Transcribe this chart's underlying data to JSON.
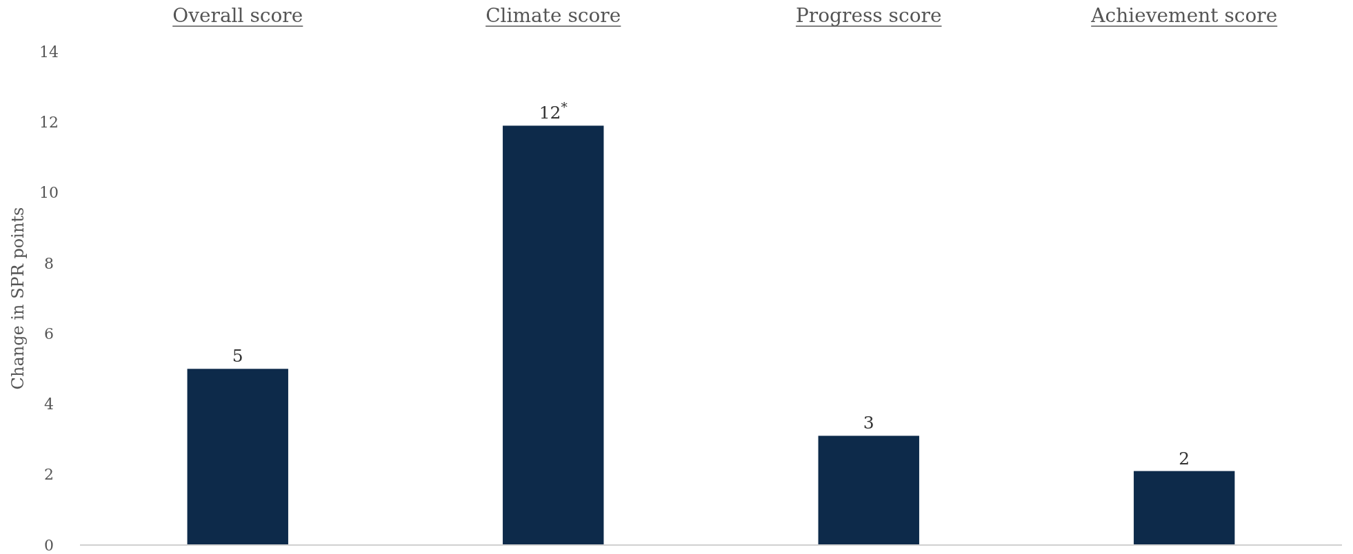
{
  "chart_data": {
    "type": "bar",
    "categories": [
      "Overall score",
      "Climate score",
      "Progress score",
      "Achievement score"
    ],
    "values": [
      5,
      11.9,
      3.1,
      2.1
    ],
    "value_labels": [
      "5",
      "12$^{*}$",
      "3",
      "2"
    ],
    "color": "#0d2a4a",
    "ylabel": "Change in SPR points",
    "ylim": [
      0,
      14
    ],
    "yticks": [
      0,
      2,
      4,
      6,
      8,
      10,
      12,
      14
    ],
    "grid": false
  }
}
